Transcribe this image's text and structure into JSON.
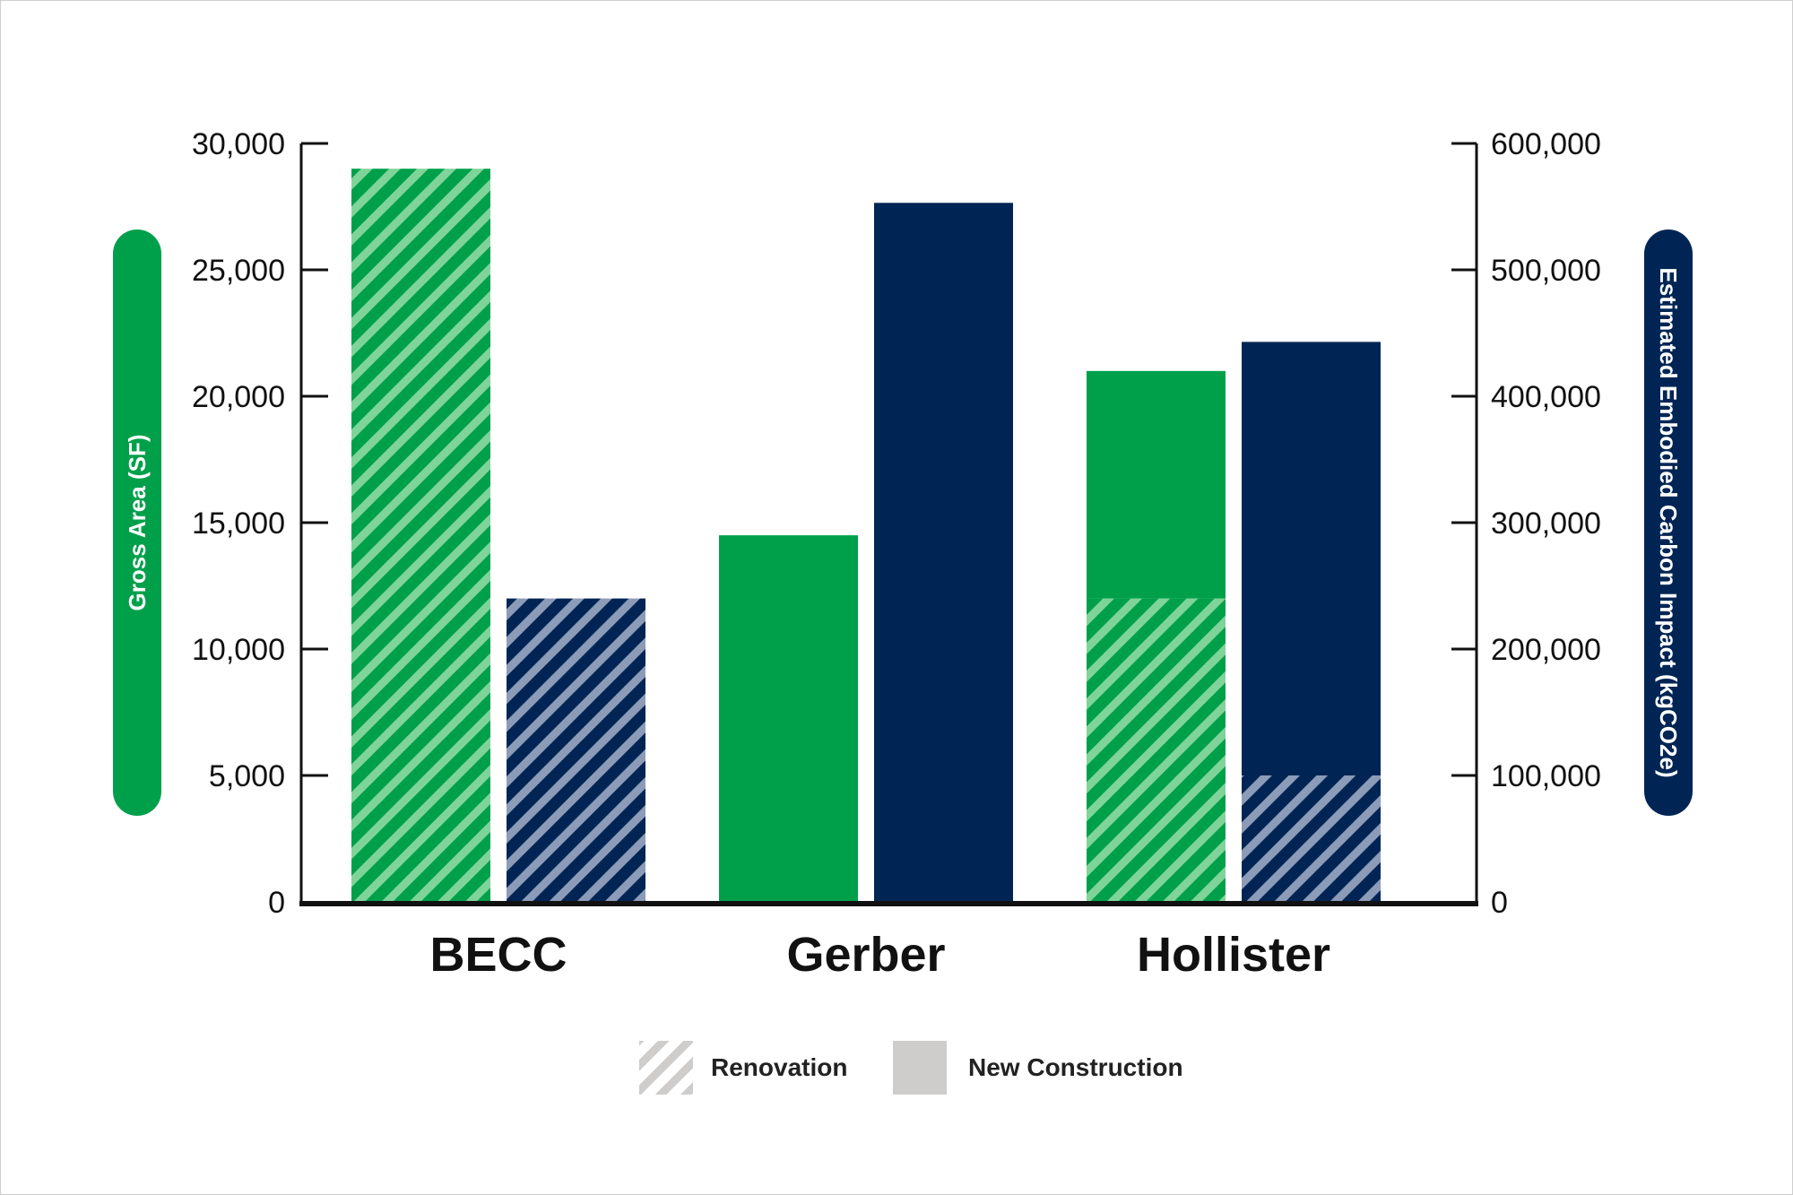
{
  "chart_data": {
    "type": "bar",
    "categories": [
      "BECC",
      "Gerber",
      "Hollister"
    ],
    "left_axis": {
      "label": "Gross Area (SF)",
      "range": [
        0,
        30000
      ],
      "ticks": [
        "0",
        "5,000",
        "10,000",
        "15,000",
        "20,000",
        "25,000",
        "30,000"
      ],
      "tick_values": [
        0,
        5000,
        10000,
        15000,
        20000,
        25000,
        30000
      ]
    },
    "right_axis": {
      "label": "Estimated Embodied Carbon Impact (kgCO2e)",
      "range": [
        0,
        600000
      ],
      "ticks": [
        "0",
        "100,000",
        "200,000",
        "300,000",
        "400,000",
        "500,000",
        "600,000"
      ],
      "tick_values": [
        0,
        100000,
        200000,
        300000,
        400000,
        500000,
        600000
      ]
    },
    "series": [
      {
        "axis": "left",
        "color": "#00a04b",
        "renovation": [
          29000,
          0,
          12000
        ],
        "new_construction": [
          0,
          14500,
          9000
        ]
      },
      {
        "axis": "right",
        "color": "#002554",
        "renovation": [
          240000,
          0,
          100000
        ],
        "new_construction": [
          0,
          553000,
          343000
        ]
      }
    ],
    "legend": {
      "placement": "bottom",
      "items": [
        {
          "label": "Renovation",
          "swatch": "hatched"
        },
        {
          "label": "New Construction",
          "swatch": "solid"
        }
      ]
    },
    "grid": false
  },
  "colors": {
    "green": "#00a04b",
    "green_hatch": "#7fd49a",
    "navy": "#002554",
    "navy_hatch": "#8c9bb8",
    "legend_gray": "#cfcdcc"
  }
}
